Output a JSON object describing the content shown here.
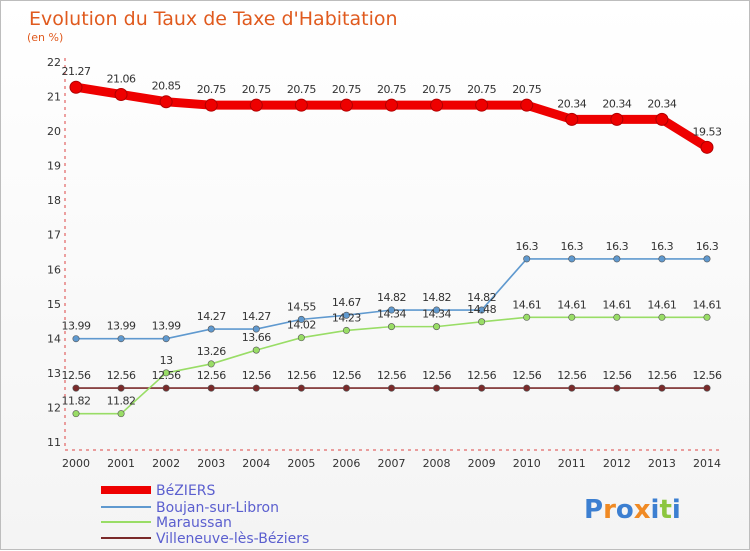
{
  "title": "Evolution du Taux de Taxe d'Habitation",
  "subtitle": "(en %)",
  "brand": {
    "letters": [
      "P",
      "r",
      "o",
      "x",
      "i",
      "t",
      "i"
    ]
  },
  "colors": {
    "title": "#e05a1e",
    "legend_text": "#5b5fcf",
    "brand": [
      "#3c7fd1",
      "#f08a24",
      "#3c7fd1",
      "#f08a24",
      "#3c7fd1",
      "#8cc63f",
      "#3c7fd1"
    ]
  },
  "chart_data": {
    "type": "line",
    "x": [
      2000,
      2001,
      2002,
      2003,
      2004,
      2005,
      2006,
      2007,
      2008,
      2009,
      2010,
      2011,
      2012,
      2013,
      2014
    ],
    "ylim": [
      11,
      22
    ],
    "yticks": [
      11,
      12,
      13,
      14,
      15,
      16,
      17,
      18,
      19,
      20,
      21,
      22
    ],
    "grid": false,
    "legend_position": "bottom-left",
    "series": [
      {
        "name": "BéZIERS",
        "color": "#ee0000",
        "values": [
          21.27,
          21.06,
          20.85,
          20.75,
          20.75,
          20.75,
          20.75,
          20.75,
          20.75,
          20.75,
          20.75,
          20.34,
          20.34,
          20.34,
          19.53
        ],
        "labels": [
          "21.27",
          "21.06",
          "20.85",
          "20.75",
          "20.75",
          "20.75",
          "20.75",
          "20.75",
          "20.75",
          "20.75",
          "20.75",
          "20.34",
          "20.34",
          "20.34",
          "19.53"
        ]
      },
      {
        "name": "Boujan-sur-Libron",
        "color": "#5f99cf",
        "values": [
          13.99,
          13.99,
          13.99,
          14.27,
          14.27,
          14.55,
          14.67,
          14.82,
          14.82,
          14.82,
          16.3,
          16.3,
          16.3,
          16.3,
          16.3
        ],
        "labels": [
          "13.99",
          "13.99",
          "13.99",
          "14.27",
          "14.27",
          "14.55",
          "14.67",
          "14.82",
          "14.82",
          "14.82",
          "16.3",
          "16.3",
          "16.3",
          "16.3",
          "16.3"
        ]
      },
      {
        "name": "Maraussan",
        "color": "#99dd66",
        "values": [
          11.82,
          11.82,
          13,
          13.26,
          13.66,
          14.02,
          14.23,
          14.34,
          14.34,
          14.48,
          14.61,
          14.61,
          14.61,
          14.61,
          14.61
        ],
        "labels": [
          "11.82",
          "11.82",
          "13",
          "13.26",
          "13.66",
          "14.02",
          "14.23",
          "14.34",
          "14.34",
          "14.48",
          "14.61",
          "14.61",
          "14.61",
          "14.61",
          "14.61"
        ]
      },
      {
        "name": "Villeneuve-lès-Béziers",
        "color": "#7a2a2a",
        "values": [
          12.56,
          12.56,
          12.56,
          12.56,
          12.56,
          12.56,
          12.56,
          12.56,
          12.56,
          12.56,
          12.56,
          12.56,
          12.56,
          12.56,
          12.56
        ],
        "labels": [
          "12.56",
          "12.56",
          "12.56",
          "12.56",
          "12.56",
          "12.56",
          "12.56",
          "12.56",
          "12.56",
          "12.56",
          "12.56",
          "12.56",
          "12.56",
          "12.56",
          "12.56"
        ]
      }
    ]
  }
}
